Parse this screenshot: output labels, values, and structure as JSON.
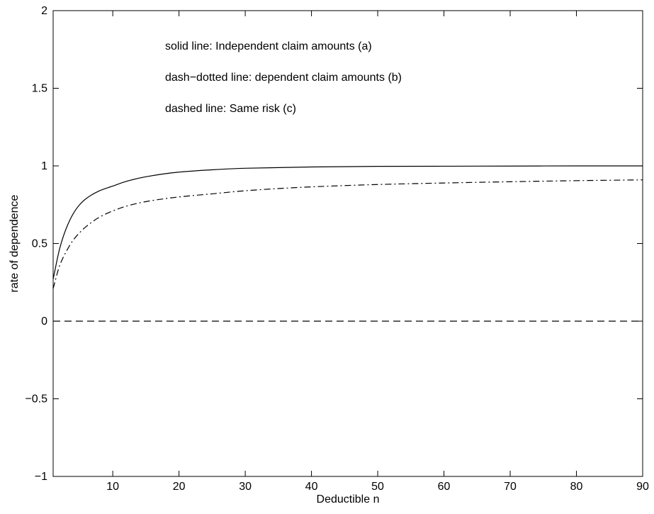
{
  "chart_data": {
    "type": "line",
    "title": "",
    "xlabel": "Deductible n",
    "ylabel": "rate of dependence",
    "xlim": [
      1,
      90
    ],
    "ylim": [
      -1,
      2
    ],
    "xticks": [
      10,
      20,
      30,
      40,
      50,
      60,
      70,
      80,
      90
    ],
    "yticks": [
      -1,
      -0.5,
      0,
      0.5,
      1,
      1.5,
      2
    ],
    "xtick_labels": [
      "10",
      "20",
      "30",
      "40",
      "50",
      "60",
      "70",
      "80",
      "90"
    ],
    "ytick_labels": [
      "−1",
      "−0.5",
      "0",
      "0.5",
      "1",
      "1.5",
      "2"
    ],
    "grid": false,
    "box": true,
    "annotations": [
      "solid line: Independent claim amounts (a)",
      "dash−dotted line:  dependent claim amounts (b)",
      "dashed line: Same risk (c)"
    ],
    "series": [
      {
        "style": "solid",
        "x": [
          1,
          2,
          3,
          4,
          5,
          6,
          8,
          10,
          12,
          15,
          20,
          25,
          30,
          40,
          50,
          60,
          70,
          80,
          90
        ],
        "y": [
          0.27,
          0.47,
          0.6,
          0.69,
          0.75,
          0.79,
          0.84,
          0.87,
          0.9,
          0.93,
          0.96,
          0.975,
          0.985,
          0.993,
          0.997,
          0.998,
          0.999,
          1.0,
          1.0
        ]
      },
      {
        "style": "dashdot",
        "x": [
          1,
          2,
          3,
          4,
          5,
          6,
          8,
          10,
          12,
          15,
          20,
          25,
          30,
          40,
          50,
          60,
          70,
          80,
          90
        ],
        "y": [
          0.21,
          0.36,
          0.45,
          0.52,
          0.57,
          0.61,
          0.67,
          0.71,
          0.74,
          0.77,
          0.8,
          0.82,
          0.84,
          0.865,
          0.88,
          0.89,
          0.898,
          0.905,
          0.91
        ]
      },
      {
        "style": "dashed",
        "x": [
          1,
          90
        ],
        "y": [
          0,
          0
        ]
      }
    ]
  }
}
